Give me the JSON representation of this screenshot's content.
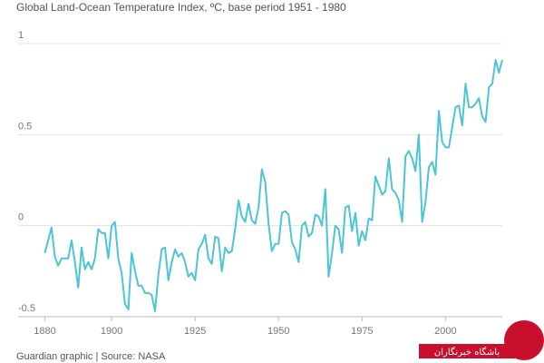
{
  "chart_data": {
    "type": "line",
    "title": "Global Land-Ocean Temperature Index, ºC, base period 1951 - 1980",
    "source": "Guardian graphic | Source: NASA",
    "watermark": "باشگاه خبرنگاران",
    "x": [
      1880,
      1881,
      1882,
      1883,
      1884,
      1885,
      1886,
      1887,
      1888,
      1889,
      1890,
      1891,
      1892,
      1893,
      1894,
      1895,
      1896,
      1897,
      1898,
      1899,
      1900,
      1901,
      1902,
      1903,
      1904,
      1905,
      1906,
      1907,
      1908,
      1909,
      1910,
      1911,
      1912,
      1913,
      1914,
      1915,
      1916,
      1917,
      1918,
      1919,
      1920,
      1921,
      1922,
      1923,
      1924,
      1925,
      1926,
      1927,
      1928,
      1929,
      1930,
      1931,
      1932,
      1933,
      1934,
      1935,
      1936,
      1937,
      1938,
      1939,
      1940,
      1941,
      1942,
      1943,
      1944,
      1945,
      1946,
      1947,
      1948,
      1949,
      1950,
      1951,
      1952,
      1953,
      1954,
      1955,
      1956,
      1957,
      1958,
      1959,
      1960,
      1961,
      1962,
      1963,
      1964,
      1965,
      1966,
      1967,
      1968,
      1969,
      1970,
      1971,
      1972,
      1973,
      1974,
      1975,
      1976,
      1977,
      1978,
      1979,
      1980,
      1981,
      1982,
      1983,
      1984,
      1985,
      1986,
      1987,
      1988,
      1989,
      1990,
      1991,
      1992,
      1993,
      1994,
      1995,
      1996,
      1997,
      1998,
      1999,
      2000,
      2001,
      2002,
      2003,
      2004,
      2005,
      2006,
      2007,
      2008,
      2009,
      2010,
      2011,
      2012,
      2013,
      2014,
      2015,
      2016,
      2017
    ],
    "series": [
      {
        "name": "Temperature index",
        "color": "#4cc5d5",
        "values": [
          -0.15,
          -0.08,
          -0.01,
          -0.17,
          -0.22,
          -0.18,
          -0.18,
          -0.18,
          -0.08,
          -0.2,
          -0.34,
          -0.12,
          -0.24,
          -0.2,
          -0.24,
          -0.18,
          -0.02,
          -0.04,
          -0.04,
          -0.18,
          0.0,
          0.02,
          -0.18,
          -0.26,
          -0.43,
          -0.46,
          -0.15,
          -0.25,
          -0.33,
          -0.33,
          -0.37,
          -0.37,
          -0.38,
          -0.47,
          -0.27,
          -0.13,
          -0.12,
          -0.3,
          -0.2,
          -0.13,
          -0.17,
          -0.15,
          -0.2,
          -0.28,
          -0.26,
          -0.3,
          -0.13,
          -0.1,
          -0.05,
          -0.18,
          -0.21,
          -0.06,
          -0.07,
          -0.25,
          -0.12,
          -0.15,
          -0.14,
          -0.02,
          0.14,
          0.05,
          0.02,
          0.12,
          0.03,
          0.01,
          0.1,
          0.31,
          0.24,
          0.01,
          -0.14,
          -0.1,
          -0.1,
          0.07,
          0.08,
          0.06,
          -0.09,
          -0.13,
          -0.2,
          0.0,
          0.02,
          -0.06,
          -0.04,
          0.06,
          0.05,
          0.0,
          0.2,
          -0.28,
          -0.15,
          0.0,
          -0.02,
          -0.15,
          0.1,
          0.11,
          -0.03,
          0.07,
          -0.11,
          -0.03,
          -0.08,
          0.04,
          0.03,
          0.27,
          0.22,
          0.17,
          0.19,
          0.37,
          0.2,
          0.18,
          0.14,
          0.02,
          0.38,
          0.41,
          0.37,
          0.3,
          0.5,
          0.02,
          0.13,
          0.32,
          0.35,
          0.28,
          0.63,
          0.46,
          0.43,
          0.43,
          0.54,
          0.65,
          0.66,
          0.55,
          0.78,
          0.65,
          0.65,
          0.67,
          0.7,
          0.6,
          0.57,
          0.76,
          0.78,
          0.91,
          0.84,
          0.91
        ]
      }
    ],
    "xlim": [
      1872,
      2017
    ],
    "xticks": [
      1880,
      1900,
      1925,
      1950,
      1975,
      2000
    ],
    "ylim": [
      -0.5,
      1
    ],
    "yticks": [
      -0.5,
      0,
      0.5,
      1
    ],
    "grid": true
  }
}
